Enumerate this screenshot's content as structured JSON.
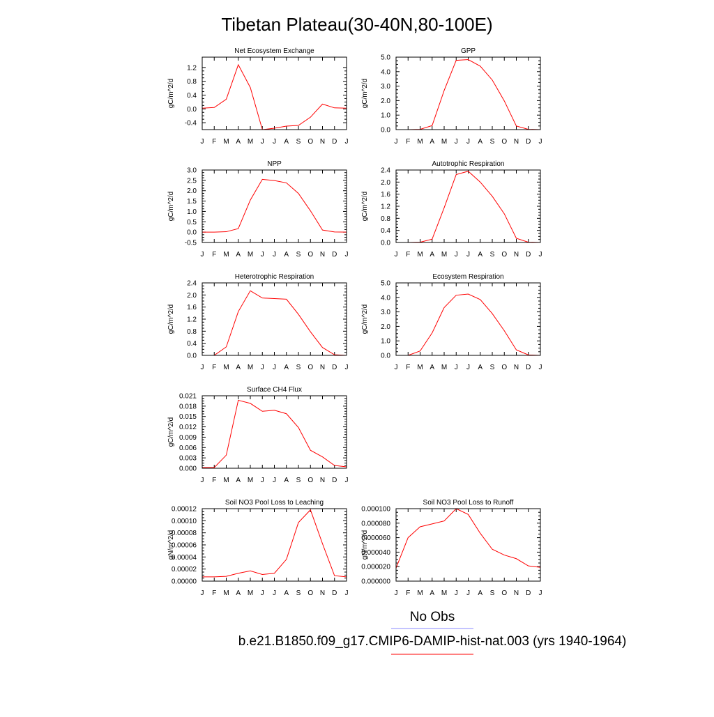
{
  "page_title": "Tibetan Plateau(30-40N,80-100E)",
  "legend": {
    "obs_label": "No Obs",
    "obs_color": "#8888ff",
    "model_label": "b.e21.B1850.f09_g17.CMIP6-DAMIP-hist-nat.003 (yrs 1940-1964)",
    "model_color": "#ff0000"
  },
  "chart_data": [
    {
      "type": "line",
      "title": "Net Ecosystem Exchange",
      "ylabel": "gC/m^2/d",
      "x": [
        "J",
        "F",
        "M",
        "A",
        "M",
        "J",
        "J",
        "A",
        "S",
        "O",
        "N",
        "D",
        "J"
      ],
      "ylim": [
        -0.6,
        1.5
      ],
      "yticks": [
        -0.4,
        0.0,
        0.4,
        0.8,
        1.2
      ],
      "ytick_labels": [
        "-0.4",
        "0.0",
        "0.4",
        "0.8",
        "1.2"
      ],
      "series": [
        {
          "values": [
            0.02,
            0.04,
            0.28,
            1.28,
            0.62,
            -0.6,
            -0.56,
            -0.5,
            -0.48,
            -0.24,
            0.14,
            0.03,
            0.02
          ]
        }
      ]
    },
    {
      "type": "line",
      "title": "GPP",
      "ylabel": "gC/m^2/d",
      "x": [
        "J",
        "F",
        "M",
        "A",
        "M",
        "J",
        "J",
        "A",
        "S",
        "O",
        "N",
        "D",
        "J"
      ],
      "ylim": [
        0.0,
        5.0
      ],
      "yticks": [
        0.0,
        1.0,
        2.0,
        3.0,
        4.0,
        5.0
      ],
      "ytick_labels": [
        "0.0",
        "1.0",
        "2.0",
        "3.0",
        "4.0",
        "5.0"
      ],
      "series": [
        {
          "values": [
            0.0,
            0.0,
            0.02,
            0.28,
            2.7,
            4.78,
            4.83,
            4.38,
            3.42,
            1.98,
            0.25,
            0.02,
            0.0
          ]
        }
      ]
    },
    {
      "type": "line",
      "title": "NPP",
      "ylabel": "gC/m^2/d",
      "x": [
        "J",
        "F",
        "M",
        "A",
        "M",
        "J",
        "J",
        "A",
        "S",
        "O",
        "N",
        "D",
        "J"
      ],
      "ylim": [
        -0.5,
        3.0
      ],
      "yticks": [
        -0.5,
        0.0,
        0.5,
        1.0,
        1.5,
        2.0,
        2.5,
        3.0
      ],
      "ytick_labels": [
        "-0.5",
        "0.0",
        "0.5",
        "1.0",
        "1.5",
        "2.0",
        "2.5",
        "3.0"
      ],
      "series": [
        {
          "values": [
            0.0,
            0.0,
            0.02,
            0.17,
            1.55,
            2.55,
            2.49,
            2.38,
            1.87,
            1.03,
            0.1,
            0.01,
            0.0
          ]
        }
      ]
    },
    {
      "type": "line",
      "title": "Autotrophic Respiration",
      "ylabel": "gC/m^2/d",
      "x": [
        "J",
        "F",
        "M",
        "A",
        "M",
        "J",
        "J",
        "A",
        "S",
        "O",
        "N",
        "D",
        "J"
      ],
      "ylim": [
        0.0,
        2.4
      ],
      "yticks": [
        0.0,
        0.4,
        0.8,
        1.2,
        1.6,
        2.0,
        2.4
      ],
      "ytick_labels": [
        "0.0",
        "0.4",
        "0.8",
        "1.2",
        "1.6",
        "2.0",
        "2.4"
      ],
      "series": [
        {
          "values": [
            0.0,
            0.0,
            0.01,
            0.11,
            1.15,
            2.25,
            2.36,
            2.0,
            1.53,
            0.95,
            0.14,
            0.01,
            0.0
          ]
        }
      ]
    },
    {
      "type": "line",
      "title": "Heterotrophic Respiration",
      "ylabel": "gC/m^2/d",
      "x": [
        "J",
        "F",
        "M",
        "A",
        "M",
        "J",
        "J",
        "A",
        "S",
        "O",
        "N",
        "D",
        "J"
      ],
      "ylim": [
        0.0,
        2.4
      ],
      "yticks": [
        0.0,
        0.4,
        0.8,
        1.2,
        1.6,
        2.0,
        2.4
      ],
      "ytick_labels": [
        "0.0",
        "0.4",
        "0.8",
        "1.2",
        "1.6",
        "2.0",
        "2.4"
      ],
      "series": [
        {
          "values": [
            0.0,
            0.0,
            0.28,
            1.45,
            2.14,
            1.9,
            1.88,
            1.86,
            1.36,
            0.78,
            0.26,
            0.02,
            0.0
          ]
        }
      ]
    },
    {
      "type": "line",
      "title": "Ecosystem Respiration",
      "ylabel": "gC/m^2/d",
      "x": [
        "J",
        "F",
        "M",
        "A",
        "M",
        "J",
        "J",
        "A",
        "S",
        "O",
        "N",
        "D",
        "J"
      ],
      "ylim": [
        0.0,
        5.0
      ],
      "yticks": [
        0.0,
        1.0,
        2.0,
        3.0,
        4.0,
        5.0
      ],
      "ytick_labels": [
        "0.0",
        "1.0",
        "2.0",
        "3.0",
        "4.0",
        "5.0"
      ],
      "series": [
        {
          "values": [
            0.0,
            0.0,
            0.3,
            1.55,
            3.3,
            4.15,
            4.23,
            3.85,
            2.88,
            1.7,
            0.38,
            0.03,
            0.0
          ]
        }
      ]
    },
    {
      "type": "line",
      "title": "Surface CH4 Flux",
      "ylabel": "gC/m^2/d",
      "x": [
        "J",
        "F",
        "M",
        "A",
        "M",
        "J",
        "J",
        "A",
        "S",
        "O",
        "N",
        "D",
        "J"
      ],
      "ylim": [
        0.0,
        0.021
      ],
      "yticks": [
        0.0,
        0.003,
        0.006,
        0.009,
        0.012,
        0.015,
        0.018,
        0.021
      ],
      "ytick_labels": [
        "0.000",
        "0.003",
        "0.006",
        "0.009",
        "0.012",
        "0.015",
        "0.018",
        "0.021"
      ],
      "series": [
        {
          "values": [
            0.0002,
            0.0002,
            0.0038,
            0.0197,
            0.0188,
            0.0165,
            0.0168,
            0.0158,
            0.0118,
            0.0052,
            0.0033,
            0.0008,
            0.0004
          ]
        }
      ]
    },
    {
      "type": "line",
      "title": "Soil NO3 Pool Loss to Leaching",
      "ylabel": "gN/m^2/d",
      "x": [
        "J",
        "F",
        "M",
        "A",
        "M",
        "J",
        "J",
        "A",
        "S",
        "O",
        "N",
        "D",
        "J"
      ],
      "ylim": [
        0.0,
        0.00012
      ],
      "yticks": [
        0.0,
        2e-05,
        4e-05,
        6e-05,
        8e-05,
        0.0001,
        0.00012
      ],
      "ytick_labels": [
        "0.00000",
        "0.00002",
        "0.00004",
        "0.00006",
        "0.00008",
        "0.00010",
        "0.00012"
      ],
      "series": [
        {
          "values": [
            7e-06,
            7e-06,
            8e-06,
            1.3e-05,
            1.7e-05,
            1.1e-05,
            1.3e-05,
            3.6e-05,
            9.7e-05,
            0.000118,
            6.2e-05,
            9e-06,
            7e-06
          ]
        }
      ]
    },
    {
      "type": "line",
      "title": "Soil NO3 Pool Loss to Runoff",
      "ylabel": "gN/m^2/d",
      "x": [
        "J",
        "F",
        "M",
        "A",
        "M",
        "J",
        "J",
        "A",
        "S",
        "O",
        "N",
        "D",
        "J"
      ],
      "ylim": [
        0.0,
        0.0001
      ],
      "yticks": [
        0.0,
        2e-05,
        4e-05,
        6e-05,
        8e-05,
        0.0001
      ],
      "ytick_labels": [
        "0.000000",
        "0.000020",
        "0.000040",
        "0.000060",
        "0.000080",
        "0.000100"
      ],
      "series": [
        {
          "values": [
            1.8e-05,
            6e-05,
            7.5e-05,
            7.9e-05,
            8.3e-05,
            0.0001,
            9.2e-05,
            6.6e-05,
            4.4e-05,
            3.6e-05,
            3.1e-05,
            2.1e-05,
            1.9e-05
          ]
        }
      ]
    }
  ]
}
